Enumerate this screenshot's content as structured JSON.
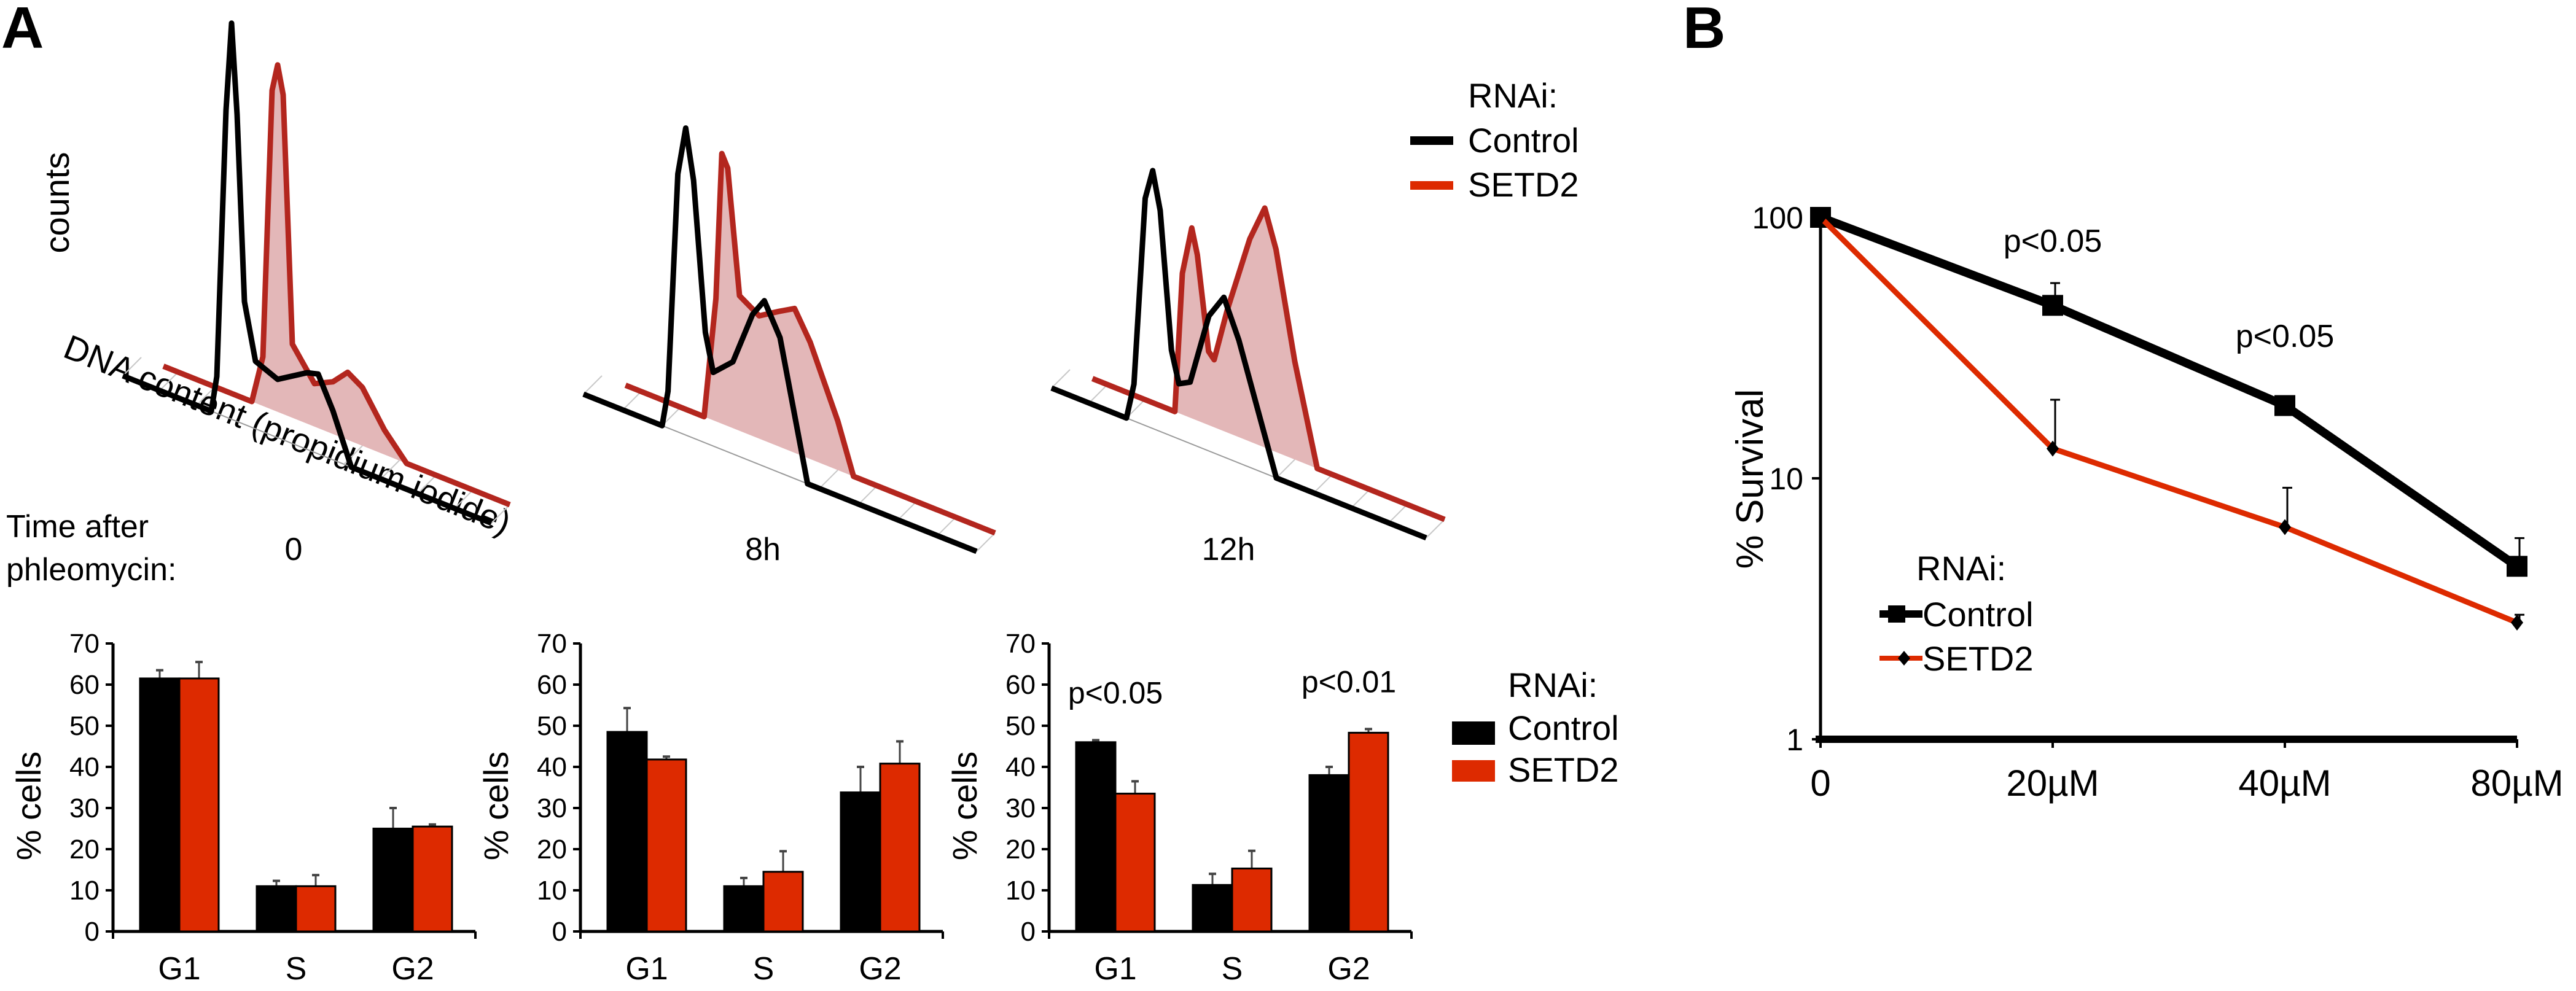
{
  "panels": {
    "A": {
      "label": "A"
    },
    "B": {
      "label": "B"
    }
  },
  "colors": {
    "control": "#000000",
    "setd2": "#dd2a00",
    "setd2_line": "#b3261e",
    "setd2_fill": "#e2b3b4",
    "baseline": "#9a9a9a"
  },
  "histograms": {
    "y_label": "counts",
    "x_label": "DNA content (propidium iodide)",
    "legend": {
      "title": "RNAi:",
      "items": [
        "Control",
        "SETD2"
      ]
    },
    "time_label_line1": "Time after",
    "time_label_line2": "phleomycin:",
    "timepoints": [
      "0",
      "8h",
      "12h"
    ]
  },
  "bar_legend": {
    "title": "RNAi:",
    "items": [
      "Control",
      "SETD2"
    ]
  },
  "chart_data": [
    {
      "type": "bar",
      "title": "0",
      "categories": [
        "G1",
        "S",
        "G2"
      ],
      "ylabel": "% cells",
      "xlabel": "",
      "ylim": [
        0,
        70
      ],
      "yticks": [
        0,
        10,
        20,
        30,
        40,
        50,
        60,
        70
      ],
      "series": [
        {
          "name": "Control",
          "values": [
            61.5,
            11,
            25
          ],
          "error_upper": [
            63.5,
            12.3,
            30
          ]
        },
        {
          "name": "SETD2",
          "values": [
            61.5,
            11,
            25.5
          ],
          "error_upper": [
            65.5,
            13.7,
            26
          ]
        }
      ],
      "annotations": []
    },
    {
      "type": "bar",
      "title": "8h",
      "categories": [
        "G1",
        "S",
        "G2"
      ],
      "ylabel": "% cells",
      "xlabel": "",
      "ylim": [
        0,
        70
      ],
      "yticks": [
        0,
        10,
        20,
        30,
        40,
        50,
        60,
        70
      ],
      "series": [
        {
          "name": "Control",
          "values": [
            48.5,
            11,
            33.8
          ],
          "error_upper": [
            54.3,
            13,
            40
          ]
        },
        {
          "name": "SETD2",
          "values": [
            41.8,
            14.5,
            40.8
          ],
          "error_upper": [
            42.5,
            19.5,
            46.2
          ]
        }
      ],
      "annotations": []
    },
    {
      "type": "bar",
      "title": "12h",
      "categories": [
        "G1",
        "S",
        "G2"
      ],
      "ylabel": "% cells",
      "xlabel": "",
      "ylim": [
        0,
        70
      ],
      "yticks": [
        0,
        10,
        20,
        30,
        40,
        50,
        60,
        70
      ],
      "series": [
        {
          "name": "Control",
          "values": [
            46,
            11.3,
            38
          ],
          "error_upper": [
            46.5,
            14,
            40
          ]
        },
        {
          "name": "SETD2",
          "values": [
            33.5,
            15.3,
            48.3
          ],
          "error_upper": [
            36.5,
            19.6,
            49.2
          ]
        }
      ],
      "annotations": [
        {
          "category": "G1",
          "text": "p<0.05"
        },
        {
          "category": "G2",
          "text": "p<0.01"
        }
      ]
    },
    {
      "type": "line",
      "title": "",
      "x": [
        "0",
        "20µM",
        "40µM",
        "80µM"
      ],
      "ylabel": "% Survival",
      "xlabel": "",
      "yscale": "log",
      "ylim": [
        1,
        100
      ],
      "yticks": [
        1,
        10,
        100
      ],
      "legend": {
        "title": "RNAi:",
        "position": "lower-left"
      },
      "series": [
        {
          "name": "Control",
          "marker": "square",
          "values": [
            100,
            46,
            19,
            4.6
          ],
          "error_upper": [
            100,
            56,
            20,
            5.9
          ]
        },
        {
          "name": "SETD2",
          "marker": "diamond",
          "values": [
            100,
            13,
            6.5,
            2.8
          ],
          "error_upper": [
            100,
            20,
            9.2,
            3.0
          ]
        }
      ],
      "annotations": [
        {
          "between": [
            "0",
            "20µM"
          ],
          "text": "p<0.05"
        },
        {
          "between": [
            "20µM",
            "40µM"
          ],
          "text": "p<0.05"
        }
      ]
    }
  ]
}
